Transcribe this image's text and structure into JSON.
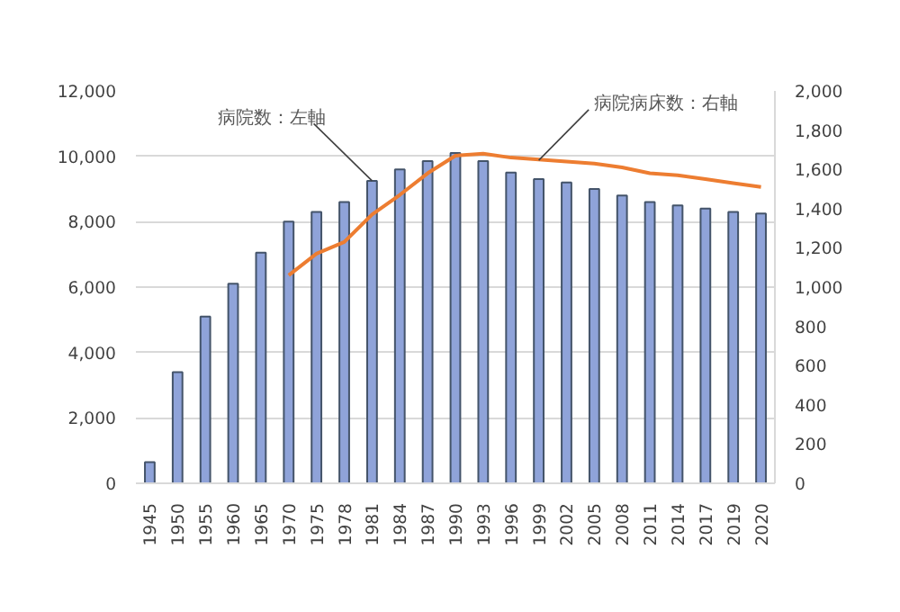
{
  "chart_data": {
    "type": "bar",
    "categories": [
      "1945",
      "1950",
      "1955",
      "1960",
      "1965",
      "1970",
      "1975",
      "1978",
      "1981",
      "1984",
      "1987",
      "1990",
      "1993",
      "1996",
      "1999",
      "2002",
      "2005",
      "2008",
      "2011",
      "2014",
      "2017",
      "2019",
      "2020"
    ],
    "series": [
      {
        "color": "#8fa3d9",
        "values": [
          650,
          3400,
          5100,
          6100,
          7050,
          8000,
          8300,
          8600,
          9250,
          9600,
          9850,
          10100,
          9850,
          9500,
          9300,
          9200,
          9000,
          8800,
          8600,
          8500,
          8400,
          8300,
          8250
        ]
      },
      {
        "type": "line",
        "axis": "y2",
        "color": "#ed7d31",
        "values": [
          null,
          null,
          null,
          null,
          null,
          1060,
          1170,
          1230,
          1370,
          1470,
          1580,
          1670,
          1680,
          1660,
          1650,
          1640,
          1630,
          1610,
          1580,
          1570,
          1550,
          1530,
          1510
        ]
      }
    ],
    "ylim": [
      0,
      12000
    ],
    "yticks": [
      {
        "value": 0,
        "label": "0"
      },
      {
        "value": 2000,
        "label": "2,000"
      },
      {
        "value": 4000,
        "label": "4,000"
      },
      {
        "value": 6000,
        "label": "6,000"
      },
      {
        "value": 8000,
        "label": "8,000"
      },
      {
        "value": 10000,
        "label": "10,000"
      },
      {
        "value": 12000,
        "label": "12,000"
      }
    ],
    "y2lim": [
      0,
      2000
    ],
    "y2ticks": [
      0,
      200,
      400,
      600,
      800,
      {
        "value": 1000,
        "label": "1,000"
      },
      {
        "value": 1200,
        "label": "1,200"
      },
      {
        "value": 1400,
        "label": "1,400"
      },
      {
        "value": 1600,
        "label": "1,600"
      },
      {
        "value": 1800,
        "label": "1,800"
      },
      {
        "value": 2000,
        "label": "2,000"
      }
    ],
    "grid": "y",
    "annotations": [
      {
        "text": "病院数：左軸",
        "x": "1981",
        "y": 9250
      },
      {
        "text": "病院病床数：右軸",
        "x": "1999",
        "y": 9876
      }
    ]
  }
}
